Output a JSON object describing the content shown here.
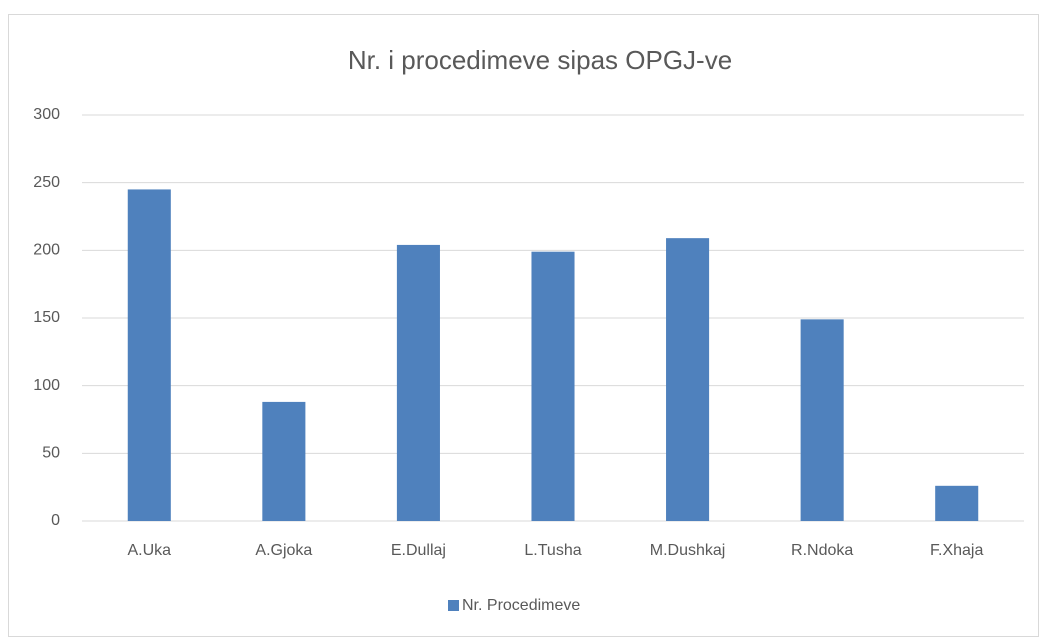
{
  "chart_data": {
    "type": "bar",
    "title": "Nr. i procedimeve sipas OPGJ-ve",
    "categories": [
      "A.Uka",
      "A.Gjoka",
      "E.Dullaj",
      "L.Tusha",
      "M.Dushkaj",
      "R.Ndoka",
      "F.Xhaja"
    ],
    "series": [
      {
        "name": "Nr. Procedimeve",
        "color": "#4f81bd",
        "values": [
          245,
          88,
          204,
          199,
          209,
          149,
          26
        ]
      }
    ],
    "ylim": [
      0,
      300
    ],
    "yticks": [
      0,
      50,
      100,
      150,
      200,
      250,
      300
    ],
    "grid": true,
    "legend": "bottom"
  }
}
